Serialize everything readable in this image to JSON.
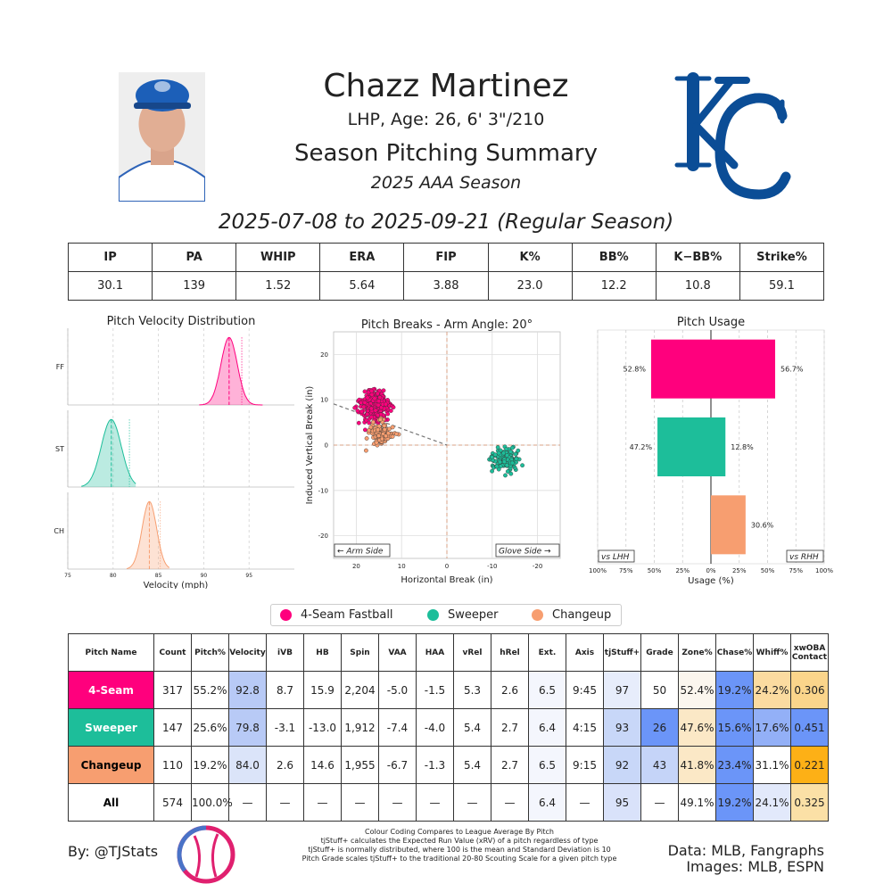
{
  "header": {
    "player_name": "Chazz Martinez",
    "bio": "LHP, Age: 26, 6' 3\"/210",
    "title": "Season Pitching Summary",
    "season": "2025 AAA Season",
    "date_range": "2025-07-08 to 2025-09-21 (Regular Season)"
  },
  "team_logo": {
    "text": "KC",
    "color": "#0b4d96"
  },
  "season_stats": {
    "headers": [
      "IP",
      "PA",
      "WHIP",
      "ERA",
      "FIP",
      "K%",
      "BB%",
      "K−BB%",
      "Strike%"
    ],
    "values": [
      "30.1",
      "139",
      "1.52",
      "5.64",
      "3.88",
      "23.0",
      "12.2",
      "10.8",
      "59.1"
    ]
  },
  "pitch_colors": {
    "4-Seam Fastball": "#ff007d",
    "Sweeper": "#1dbe9a",
    "Changeup": "#f79e70"
  },
  "chart_data": [
    {
      "type": "area",
      "title": "Pitch Velocity Distribution",
      "xlabel": "Velocity (mph)",
      "xlim": [
        75,
        100
      ],
      "xticks": [
        75,
        80,
        85,
        90,
        95
      ],
      "series": [
        {
          "name": "FF",
          "mean": 92.8,
          "sd": 0.9,
          "league_mean": 94.2,
          "range": [
            89.5,
            96.5
          ],
          "color": "#ff007d"
        },
        {
          "name": "ST",
          "mean": 79.8,
          "sd": 1.1,
          "league_mean": 81.8,
          "range": [
            76.5,
            82.5
          ],
          "color": "#1dbe9a"
        },
        {
          "name": "CH",
          "mean": 84.0,
          "sd": 0.8,
          "league_mean": 85.2,
          "range": [
            81.5,
            86.2
          ],
          "color": "#f79e70"
        }
      ]
    },
    {
      "type": "scatter",
      "title": "Pitch Breaks - Arm Angle: 20°",
      "xlabel": "Horizontal Break (in)",
      "ylabel": "Induced Vertical Break (in)",
      "xlim": [
        25,
        -25
      ],
      "ylim": [
        -25,
        25
      ],
      "xticks": [
        20,
        10,
        0,
        -10,
        -20
      ],
      "yticks": [
        20,
        10,
        0,
        -10,
        -20
      ],
      "arm_side_label": "← Arm Side",
      "glove_side_label": "Glove Side →",
      "arm_angle_line": {
        "from": [
          25,
          9.1
        ],
        "to": [
          0,
          0
        ]
      },
      "series": [
        {
          "name": "4-Seam Fastball",
          "count": 317,
          "center": [
            15.9,
            8.7
          ],
          "spread": [
            2.2,
            2.1
          ],
          "color": "#ff007d"
        },
        {
          "name": "Sweeper",
          "count": 147,
          "center": [
            -13.0,
            -3.1
          ],
          "spread": [
            2.1,
            1.9
          ],
          "color": "#1dbe9a"
        },
        {
          "name": "Changeup",
          "count": 110,
          "center": [
            14.6,
            2.6
          ],
          "spread": [
            1.9,
            2.0
          ],
          "color": "#f79e70"
        }
      ]
    },
    {
      "type": "bar",
      "title": "Pitch Usage",
      "xlabel": "Usage (%)",
      "xlim": [
        -100,
        100
      ],
      "xticks": [
        "100%",
        "75%",
        "50%",
        "25%",
        "0%",
        "25%",
        "50%",
        "75%",
        "100%"
      ],
      "left_label": "vs LHH",
      "right_label": "vs RHH",
      "categories": [
        "4-Seam Fastball",
        "Sweeper",
        "Changeup"
      ],
      "series": [
        {
          "name": "vs LHH",
          "values": [
            52.8,
            47.2,
            0
          ]
        },
        {
          "name": "vs RHH",
          "values": [
            56.7,
            12.8,
            30.6
          ]
        }
      ],
      "value_labels": {
        "lhh": [
          "52.8%",
          "47.2%",
          ""
        ],
        "rhh": [
          "56.7%",
          "12.8%",
          "30.6%"
        ]
      }
    }
  ],
  "legend": [
    "4-Seam Fastball",
    "Sweeper",
    "Changeup"
  ],
  "pitch_table": {
    "headers": [
      "Pitch Name",
      "Count",
      "Pitch%",
      "Velocity",
      "iVB",
      "HB",
      "Spin",
      "VAA",
      "HAA",
      "vRel",
      "hRel",
      "Ext.",
      "Axis",
      "tjStuff+",
      "Grade",
      "Zone%",
      "Chase%",
      "Whiff%",
      "xwOBA Contact"
    ],
    "rows": [
      {
        "name": "4-Seam",
        "name_bg": "#ff007d",
        "name_color": "#ffffff",
        "cells": [
          "317",
          "55.2%",
          "92.8",
          "8.7",
          "15.9",
          "2,204",
          "-5.0",
          "-1.5",
          "5.3",
          "2.6",
          "6.5",
          "9:45",
          "97",
          "50",
          "52.4%",
          "19.2%",
          "24.2%",
          "0.306"
        ],
        "bgs": [
          "",
          "",
          "#b8caf6",
          "",
          "",
          "",
          "",
          "",
          "",
          "",
          "#f4f6fd",
          "",
          "#e7edfb",
          "",
          "#fbf6ee",
          "#6b95f8",
          "#fbdba0",
          "#fbd58b"
        ]
      },
      {
        "name": "Sweeper",
        "name_bg": "#1dbe9a",
        "name_color": "#ffffff",
        "cells": [
          "147",
          "25.6%",
          "79.8",
          "-3.1",
          "-13.0",
          "1,912",
          "-7.4",
          "-4.0",
          "5.4",
          "2.7",
          "6.4",
          "4:15",
          "93",
          "26",
          "47.6%",
          "15.6%",
          "17.6%",
          "0.451"
        ],
        "bgs": [
          "",
          "",
          "#b8caf6",
          "",
          "",
          "",
          "",
          "",
          "",
          "",
          "#f4f6fd",
          "",
          "#c8d7f8",
          "#6b95f8",
          "#fbe8c6",
          "#6b95f8",
          "#93b0f7",
          "#6b95f8"
        ]
      },
      {
        "name": "Changeup",
        "name_bg": "#f79e70",
        "name_color": "#000000",
        "cells": [
          "110",
          "19.2%",
          "84.0",
          "2.6",
          "14.6",
          "1,955",
          "-6.7",
          "-1.3",
          "5.4",
          "2.7",
          "6.5",
          "9:15",
          "92",
          "43",
          "41.8%",
          "23.4%",
          "31.1%",
          "0.221"
        ],
        "bgs": [
          "",
          "",
          "#dbe4f9",
          "",
          "",
          "",
          "",
          "",
          "",
          "",
          "#f4f6fd",
          "",
          "#c8d7f8",
          "#c5d4f8",
          "#fbe8c6",
          "#6b95f8",
          "",
          "#fdb016"
        ]
      },
      {
        "name": "All",
        "name_bg": "#ffffff",
        "name_color": "#000000",
        "cells": [
          "574",
          "100.0%",
          "—",
          "—",
          "—",
          "—",
          "—",
          "—",
          "—",
          "—",
          "6.4",
          "—",
          "95",
          "—",
          "49.1%",
          "19.2%",
          "24.1%",
          "0.325"
        ],
        "bgs": [
          "",
          "",
          "",
          "",
          "",
          "",
          "",
          "",
          "",
          "",
          "#f4f6fd",
          "",
          "#d9e2fa",
          "",
          "",
          "#6b95f8",
          "#e2e9fb",
          "#fbe0a6"
        ]
      }
    ]
  },
  "footer": {
    "byline": "By: @TJStats",
    "notes": [
      "Colour Coding Compares to League Average By Pitch",
      "tjStuff+ calculates the Expected Run Value (xRV) of a pitch regardless of type",
      "tjStuff+ is normally distributed, where 100 is the mean and Standard Deviation is 10",
      "Pitch Grade scales tjStuff+ to the traditional 20-80 Scouting Scale for a given pitch type"
    ],
    "source": "Data: MLB, Fangraphs",
    "images": "Images: MLB, ESPN"
  }
}
